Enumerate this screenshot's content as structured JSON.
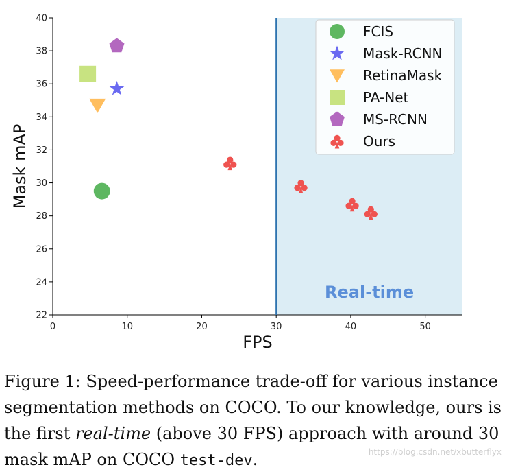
{
  "chart_data": {
    "type": "scatter",
    "xlabel": "FPS",
    "ylabel": "Mask mAP",
    "xlim": [
      0,
      55
    ],
    "ylim": [
      22,
      40
    ],
    "xticks": [
      0,
      10,
      20,
      30,
      40,
      50
    ],
    "yticks": [
      22,
      24,
      26,
      28,
      30,
      32,
      34,
      36,
      38,
      40
    ],
    "realtime_threshold": 30,
    "realtime_label": "Real-time",
    "realtime_color": "#dcedf5",
    "threshold_line_color": "#2f74b0",
    "legend_position": "top-right",
    "series": [
      {
        "name": "FCIS",
        "marker": "circle",
        "color": "#4caf50",
        "points": [
          {
            "x": 6.6,
            "y": 29.5
          }
        ]
      },
      {
        "name": "Mask-RCNN",
        "marker": "star",
        "color": "#5a5af0",
        "points": [
          {
            "x": 8.6,
            "y": 35.7
          }
        ]
      },
      {
        "name": "RetinaMask",
        "marker": "triangle-down",
        "color": "#ffb74d",
        "points": [
          {
            "x": 6.0,
            "y": 34.7
          }
        ]
      },
      {
        "name": "PA-Net",
        "marker": "square",
        "color": "#c5e17a",
        "points": [
          {
            "x": 4.7,
            "y": 36.6
          }
        ]
      },
      {
        "name": "MS-RCNN",
        "marker": "pentagon",
        "color": "#ab58b8",
        "points": [
          {
            "x": 8.6,
            "y": 38.3
          }
        ]
      },
      {
        "name": "Ours",
        "marker": "club",
        "color": "#ef5350",
        "points": [
          {
            "x": 23.8,
            "y": 31.2
          },
          {
            "x": 33.3,
            "y": 29.8
          },
          {
            "x": 40.2,
            "y": 28.7
          },
          {
            "x": 42.7,
            "y": 28.2
          }
        ]
      }
    ]
  },
  "caption": {
    "label": "Figure 1:",
    "part1": " Speed-performance trade-off for various instance segmentation methods on COCO. To our knowledge, ours is the first ",
    "emph": "real-time",
    "part2": " (above 30 FPS) approach with around 30 mask mAP on COCO ",
    "code": "test-dev",
    "end": "."
  },
  "watermark": "https://blog.csdn.net/xbutterflyx"
}
